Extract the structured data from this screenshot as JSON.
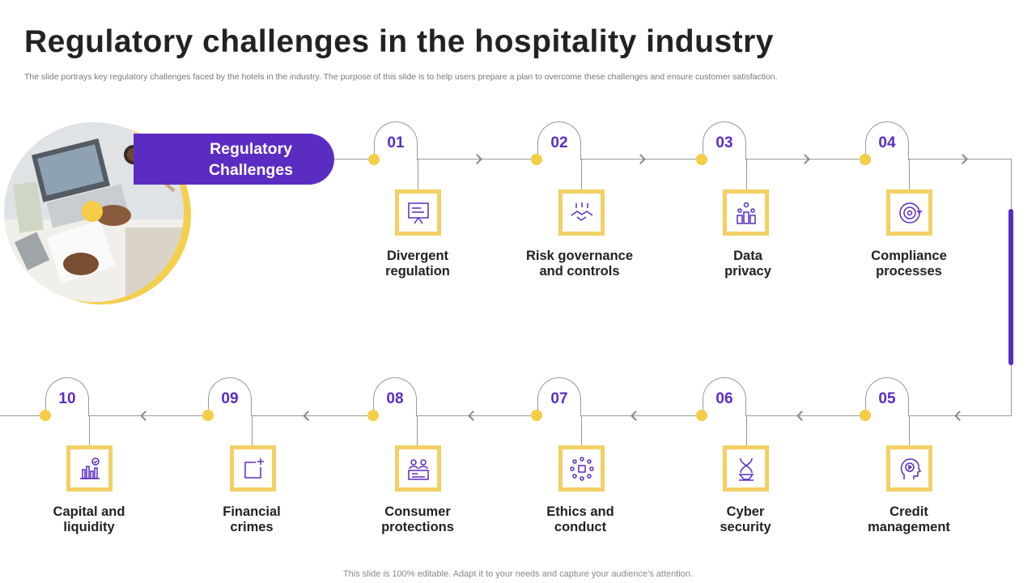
{
  "slide": {
    "title": "Regulatory challenges in the hospitality industry",
    "subtitle": "The slide portrays key regulatory challenges faced by the hotels in the industry. The purpose of this slide is to help users prepare a plan to overcome these challenges and ensure customer satisfaction.",
    "footer": "This slide is 100% editable. Adapt it to your needs and capture your audience’s attention."
  },
  "banner": {
    "line1": "Regulatory",
    "line2": "Challenges"
  },
  "colors": {
    "accent": "#5b2cc2",
    "highlight": "#f5cd46",
    "line": "#9a9a9a"
  },
  "steps": [
    {
      "num": "01",
      "line1": "Divergent",
      "line2": "regulation",
      "icon": "presentation-board-icon"
    },
    {
      "num": "02",
      "line1": "Risk governance",
      "line2": "and controls",
      "icon": "handshake-icon"
    },
    {
      "num": "03",
      "line1": "Data",
      "line2": "privacy",
      "icon": "podium-stars-icon"
    },
    {
      "num": "04",
      "line1": "Compliance",
      "line2": "processes",
      "icon": "gear-cycle-icon"
    },
    {
      "num": "05",
      "line1": "Credit",
      "line2": "management",
      "icon": "head-play-icon"
    },
    {
      "num": "06",
      "line1": "Cyber",
      "line2": "security",
      "icon": "dna-hourglass-icon"
    },
    {
      "num": "07",
      "line1": "Ethics and",
      "line2": "conduct",
      "icon": "network-dots-icon"
    },
    {
      "num": "08",
      "line1": "Consumer",
      "line2": "protections",
      "icon": "users-dashboard-icon"
    },
    {
      "num": "09",
      "line1": "Financial",
      "line2": "crimes",
      "icon": "frame-plus-icon"
    },
    {
      "num": "10",
      "line1": "Capital and",
      "line2": "liquidity",
      "icon": "bar-chart-check-icon"
    }
  ]
}
